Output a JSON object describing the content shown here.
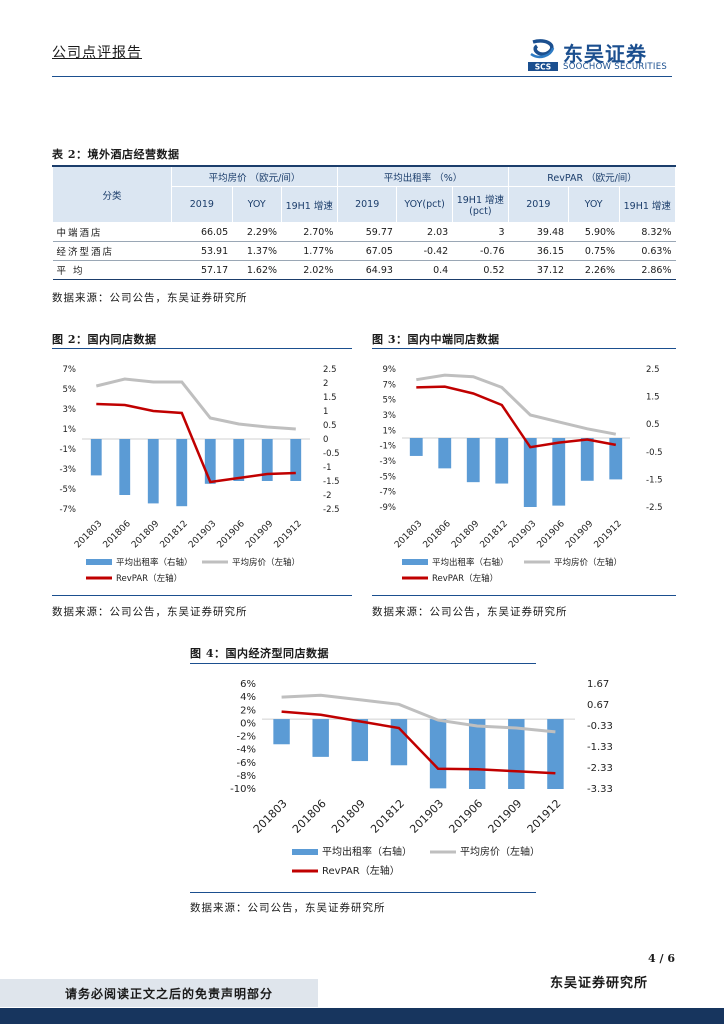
{
  "header": {
    "report_type": "公司点评报告",
    "logo_cn": "东吴证券",
    "logo_en": "SOOCHOW SECURITIES",
    "logo_mark": "SCS"
  },
  "table": {
    "title": "表 2：境外酒店经营数据",
    "group_headers": [
      "平均房价 （欧元/间）",
      "平均出租率 （%）",
      "RevPAR （欧元/间）"
    ],
    "row_header": "分类",
    "sub_headers": [
      "2019",
      "YOY",
      "19H1 增速",
      "2019",
      "YOY(pct)",
      "19H1 增速(pct)",
      "2019",
      "YOY",
      "19H1 增速"
    ],
    "rows": [
      {
        "name": "中端酒店",
        "values": [
          "66.05",
          "2.29%",
          "2.70%",
          "59.77",
          "2.03",
          "3",
          "39.48",
          "5.90%",
          "8.32%"
        ]
      },
      {
        "name": "经济型酒店",
        "values": [
          "53.91",
          "1.37%",
          "1.77%",
          "67.05",
          "-0.42",
          "-0.76",
          "36.15",
          "0.75%",
          "0.63%"
        ]
      },
      {
        "name": "平 均",
        "values": [
          "57.17",
          "1.62%",
          "2.02%",
          "64.93",
          "0.4",
          "0.52",
          "37.12",
          "2.26%",
          "2.86%"
        ]
      }
    ],
    "source": "数据来源：公司公告，东吴证券研究所"
  },
  "chart_data": [
    {
      "type": "bar",
      "title": "图 2：国内同店数据",
      "categories": [
        "201803",
        "201806",
        "201809",
        "201812",
        "201903",
        "201906",
        "201909",
        "201912"
      ],
      "left_axis": {
        "ylim": [
          -7,
          7
        ],
        "ticks": [
          "7%",
          "5%",
          "3%",
          "1%",
          "-1%",
          "-3%",
          "-5%",
          "-7%"
        ]
      },
      "right_axis": {
        "ylim": [
          -2.5,
          2.5
        ],
        "ticks": [
          "2.5",
          "2",
          "1.5",
          "1",
          "0.5",
          "0",
          "-0.5",
          "-1",
          "-1.5",
          "-2",
          "-2.5"
        ]
      },
      "series": [
        {
          "name": "平均出租率（右轴）",
          "type": "bar",
          "axis": "right",
          "color": "#5b9bd5",
          "values": [
            -1.3,
            -2.0,
            -2.3,
            -2.4,
            -1.6,
            -1.5,
            -1.5,
            -1.5
          ]
        },
        {
          "name": "平均房价（左轴）",
          "type": "line",
          "axis": "left",
          "color": "#bfbfbf",
          "values": [
            5.3,
            6.0,
            5.7,
            5.7,
            2.1,
            1.5,
            1.2,
            1.0
          ]
        },
        {
          "name": "RevPAR（左轴）",
          "type": "line",
          "axis": "left",
          "color": "#c00000",
          "values": [
            3.5,
            3.4,
            2.8,
            2.6,
            -4.3,
            -3.9,
            -3.5,
            -3.4
          ]
        }
      ],
      "source": "数据来源：公司公告，东吴证券研究所"
    },
    {
      "type": "bar",
      "title": "图 3：国内中端同店数据",
      "categories": [
        "201803",
        "201806",
        "201809",
        "201812",
        "201903",
        "201906",
        "201909",
        "201912"
      ],
      "left_axis": {
        "ylim": [
          -9,
          9
        ],
        "ticks": [
          "9%",
          "7%",
          "5%",
          "3%",
          "1%",
          "-1%",
          "-3%",
          "-5%",
          "-7%",
          "-9%"
        ]
      },
      "right_axis": {
        "ylim": [
          -2.5,
          2.5
        ],
        "ticks": [
          "2.5",
          "1.5",
          "0.5",
          "-0.5",
          "-1.5",
          "-2.5"
        ]
      },
      "series": [
        {
          "name": "平均出租率（右轴）",
          "type": "bar",
          "axis": "right",
          "color": "#5b9bd5",
          "values": [
            -0.65,
            -1.1,
            -1.6,
            -1.65,
            -2.5,
            -2.45,
            -1.55,
            -1.5
          ]
        },
        {
          "name": "平均房价（左轴）",
          "type": "line",
          "axis": "left",
          "color": "#bfbfbf",
          "values": [
            7.6,
            8.2,
            8.0,
            6.6,
            3.0,
            2.1,
            1.2,
            0.5
          ]
        },
        {
          "name": "RevPAR（左轴）",
          "type": "line",
          "axis": "left",
          "color": "#c00000",
          "values": [
            6.6,
            6.7,
            5.8,
            4.3,
            -1.2,
            -0.6,
            -0.2,
            -0.9
          ]
        }
      ],
      "source": "数据来源：公司公告，东吴证券研究所"
    },
    {
      "type": "bar",
      "title": "图 4：国内经济型同店数据",
      "categories": [
        "201803",
        "201806",
        "201809",
        "201812",
        "201903",
        "201906",
        "201909",
        "201912"
      ],
      "left_axis": {
        "ylim": [
          -10,
          6
        ],
        "ticks": [
          "6%",
          "4%",
          "2%",
          "0%",
          "-2%",
          "-4%",
          "-6%",
          "-8%",
          "-10%"
        ]
      },
      "right_axis": {
        "ylim": [
          -3.33,
          1.67
        ],
        "ticks": [
          "1.67",
          "0.67",
          "-0.33",
          "-1.33",
          "-2.33",
          "-3.33"
        ]
      },
      "series": [
        {
          "name": "平均出租率（右轴）",
          "type": "bar",
          "axis": "right",
          "color": "#5b9bd5",
          "values": [
            -1.2,
            -1.8,
            -2.0,
            -2.2,
            -3.3,
            -3.33,
            -3.33,
            -3.33
          ]
        },
        {
          "name": "平均房价（左轴）",
          "type": "line",
          "axis": "left",
          "color": "#bfbfbf",
          "values": [
            4.0,
            4.3,
            3.6,
            2.9,
            0.5,
            -0.4,
            -0.7,
            -1.3
          ]
        },
        {
          "name": "RevPAR（左轴）",
          "type": "line",
          "axis": "left",
          "color": "#c00000",
          "values": [
            1.8,
            1.3,
            0.3,
            -0.7,
            -6.9,
            -7.0,
            -7.3,
            -7.6
          ]
        }
      ],
      "source": "数据来源：公司公告，东吴证券研究所"
    }
  ],
  "footer": {
    "page": "4 / 6",
    "notice": "请务必阅读正文之后的免责声明部分",
    "institute": "东吴证券研究所"
  },
  "colors": {
    "brand": "#1b4f8f",
    "bar": "#5b9bd5",
    "price_line": "#bfbfbf",
    "revpar_line": "#c00000",
    "footer_bar": "#17355e"
  }
}
